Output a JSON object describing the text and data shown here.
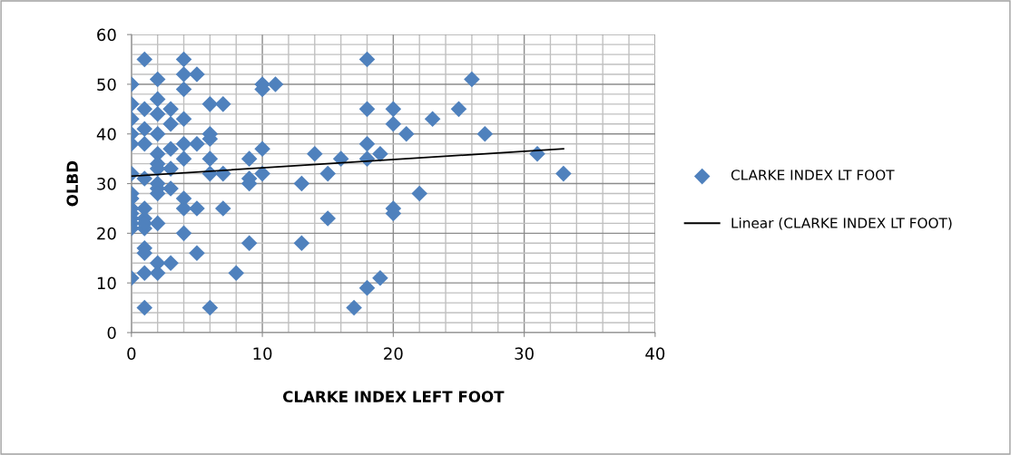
{
  "chart_data": {
    "type": "scatter",
    "xlabel": "CLARKE INDEX LEFT FOOT",
    "ylabel": "OLBD",
    "xlim": [
      0,
      40
    ],
    "xticks": [
      0,
      10,
      20,
      30,
      40
    ],
    "ylim": [
      0,
      60
    ],
    "yticks": [
      0,
      10,
      20,
      30,
      40,
      50,
      60
    ],
    "grid": true,
    "legend": "right",
    "marker": "diamond",
    "series": [
      {
        "name": "CLARKE INDEX LT FOOT",
        "color": "#4f81bd",
        "x": [
          0,
          0,
          0,
          0,
          0,
          0,
          0,
          0,
          0,
          0,
          0,
          0,
          0,
          0,
          1,
          1,
          1,
          1,
          1,
          1,
          1,
          1,
          1,
          1,
          1,
          1,
          1,
          2,
          2,
          2,
          2,
          2,
          2,
          2,
          2,
          2,
          2,
          2,
          2,
          2,
          3,
          3,
          3,
          3,
          3,
          3,
          4,
          4,
          4,
          4,
          4,
          4,
          4,
          4,
          4,
          5,
          5,
          5,
          5,
          6,
          6,
          6,
          6,
          6,
          6,
          7,
          7,
          7,
          8,
          9,
          9,
          9,
          9,
          10,
          10,
          10,
          10,
          11,
          13,
          13,
          14,
          15,
          15,
          16,
          17,
          18,
          18,
          18,
          18,
          18,
          19,
          19,
          20,
          20,
          20,
          20,
          21,
          22,
          23,
          25,
          26,
          27,
          31,
          33
        ],
        "values": [
          50,
          46,
          43,
          40,
          38,
          32,
          28,
          27,
          25,
          24,
          23,
          22,
          21,
          11,
          55,
          45,
          41,
          38,
          31,
          25,
          23,
          21,
          17,
          16,
          12,
          5,
          22,
          51,
          47,
          44,
          40,
          36,
          34,
          33,
          30,
          29,
          28,
          22,
          14,
          12,
          45,
          42,
          37,
          33,
          29,
          14,
          55,
          52,
          49,
          43,
          38,
          35,
          27,
          25,
          20,
          52,
          38,
          25,
          16,
          46,
          40,
          39,
          35,
          32,
          5,
          46,
          32,
          25,
          12,
          35,
          31,
          30,
          18,
          50,
          49,
          37,
          32,
          50,
          30,
          18,
          36,
          32,
          23,
          35,
          5,
          55,
          45,
          38,
          35,
          9,
          36,
          11,
          45,
          42,
          25,
          24,
          40,
          28,
          43,
          45,
          51,
          40,
          36,
          32
        ]
      },
      {
        "name": "Linear (CLARKE INDEX LT FOOT)",
        "color": "#000000",
        "type": "line",
        "marker": "none",
        "line_style": "solid",
        "x": [
          0,
          33
        ],
        "values": [
          31.5,
          37
        ]
      }
    ]
  }
}
